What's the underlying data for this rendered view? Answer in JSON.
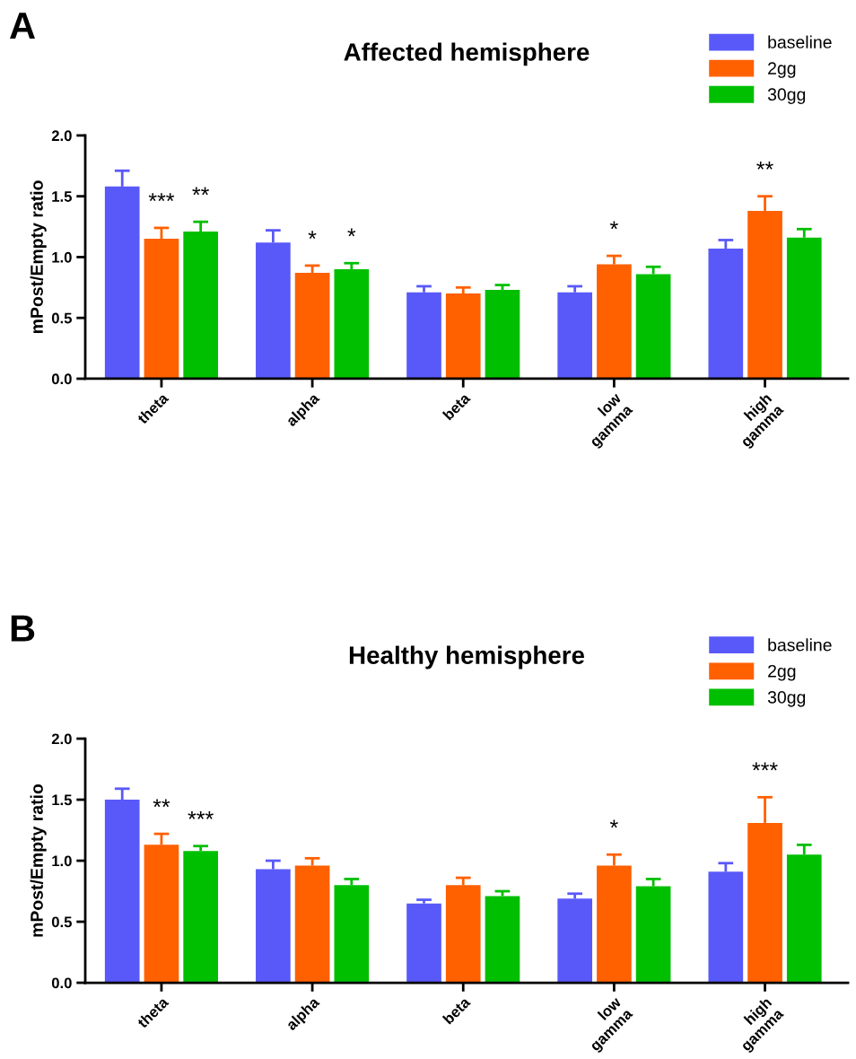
{
  "chart_data": [
    {
      "type": "bar",
      "title": "Affected hemisphere",
      "ylabel": "mPost/Empty ratio",
      "annotations": [
        "A"
      ],
      "categories": [
        "theta",
        "alpha",
        "beta",
        "low\ngamma",
        "high\ngamma"
      ],
      "series": [
        {
          "name": "baseline",
          "color": "#5959f9",
          "values": [
            1.58,
            1.12,
            0.71,
            0.71,
            1.07
          ],
          "errors": [
            [
              1.58,
              1.71
            ],
            [
              1.12,
              1.22
            ],
            [
              0.71,
              0.76
            ],
            [
              0.71,
              0.76
            ],
            [
              1.07,
              1.14
            ]
          ]
        },
        {
          "name": "2gg",
          "color": "#ff6000",
          "values": [
            1.15,
            0.87,
            0.7,
            0.94,
            1.38
          ],
          "errors": [
            [
              1.15,
              1.24
            ],
            [
              0.87,
              0.93
            ],
            [
              0.7,
              0.75
            ],
            [
              0.94,
              1.01
            ],
            [
              1.38,
              1.5
            ]
          ],
          "value_labels": [
            "***",
            "*",
            null,
            "*",
            "**"
          ]
        },
        {
          "name": "30gg",
          "color": "#00bf00",
          "values": [
            1.21,
            0.9,
            0.73,
            0.86,
            1.16
          ],
          "errors": [
            [
              1.21,
              1.29
            ],
            [
              0.9,
              0.95
            ],
            [
              0.73,
              0.77
            ],
            [
              0.86,
              0.92
            ],
            [
              1.16,
              1.23
            ]
          ],
          "value_labels": [
            "**",
            "*",
            null,
            null,
            null
          ]
        }
      ],
      "ylim": [
        0,
        2
      ],
      "yticks": [
        {
          "value": 0,
          "label": "0.0"
        },
        {
          "value": 0.5,
          "label": "0.5"
        },
        {
          "value": 1,
          "label": "1.0"
        },
        {
          "value": 1.5,
          "label": "1.5"
        },
        {
          "value": 2,
          "label": "2.0"
        }
      ],
      "grid": false,
      "legend": "top right"
    },
    {
      "type": "bar",
      "title": "Healthy hemisphere",
      "ylabel": "mPost/Empty ratio",
      "annotations": [
        "B"
      ],
      "categories": [
        "theta",
        "alpha",
        "beta",
        "low\ngamma",
        "high\ngamma"
      ],
      "series": [
        {
          "name": "baseline",
          "color": "#5959f9",
          "values": [
            1.5,
            0.93,
            0.65,
            0.69,
            0.91
          ],
          "errors": [
            [
              1.5,
              1.59
            ],
            [
              0.93,
              1.0
            ],
            [
              0.65,
              0.68
            ],
            [
              0.69,
              0.73
            ],
            [
              0.91,
              0.98
            ]
          ]
        },
        {
          "name": "2gg",
          "color": "#ff6000",
          "values": [
            1.13,
            0.96,
            0.8,
            0.96,
            1.31
          ],
          "errors": [
            [
              1.13,
              1.22
            ],
            [
              0.96,
              1.02
            ],
            [
              0.8,
              0.86
            ],
            [
              0.96,
              1.05
            ],
            [
              1.31,
              1.52
            ]
          ],
          "value_labels": [
            "**",
            null,
            null,
            "*",
            "***"
          ]
        },
        {
          "name": "30gg",
          "color": "#00bf00",
          "values": [
            1.08,
            0.8,
            0.71,
            0.79,
            1.05
          ],
          "errors": [
            [
              1.08,
              1.12
            ],
            [
              0.8,
              0.85
            ],
            [
              0.71,
              0.75
            ],
            [
              0.79,
              0.85
            ],
            [
              1.05,
              1.13
            ]
          ],
          "value_labels": [
            "***",
            null,
            null,
            null,
            null
          ]
        }
      ],
      "ylim": [
        0,
        2
      ],
      "yticks": [
        {
          "value": 0,
          "label": "0.0"
        },
        {
          "value": 0.5,
          "label": "0.5"
        },
        {
          "value": 1,
          "label": "1.0"
        },
        {
          "value": 1.5,
          "label": "1.5"
        },
        {
          "value": 2,
          "label": "2.0"
        }
      ],
      "grid": false,
      "legend": "top right"
    }
  ]
}
